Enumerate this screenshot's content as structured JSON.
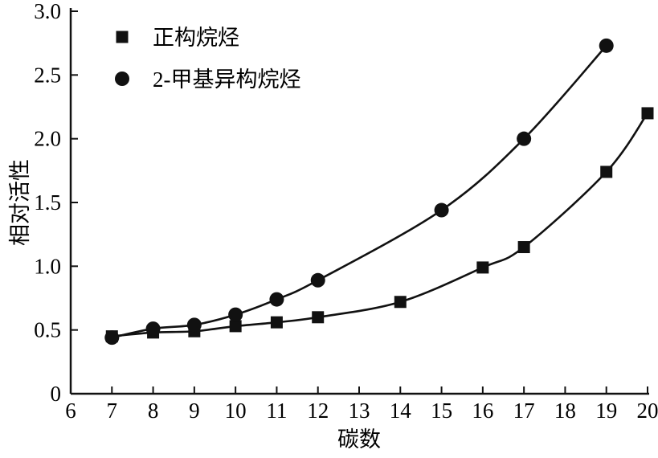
{
  "chart_data": {
    "type": "line",
    "title": "",
    "xlabel": "碳数",
    "ylabel": "相对活性",
    "xlim": [
      6,
      20
    ],
    "ylim": [
      0,
      3.0
    ],
    "xticks": [
      6,
      7,
      8,
      9,
      10,
      11,
      12,
      13,
      14,
      15,
      16,
      17,
      18,
      19,
      20
    ],
    "xtick_labels": [
      "6",
      "7",
      "8",
      "9",
      "10",
      "11",
      "12",
      "13",
      "14",
      "15",
      "16",
      "17",
      "18",
      "19",
      "20"
    ],
    "yticks": [
      0,
      0.5,
      1.0,
      1.5,
      2.0,
      2.5,
      3.0
    ],
    "ytick_labels": [
      "0",
      "0.5",
      "1.0",
      "1.5",
      "2.0",
      "2.5",
      "3.0"
    ],
    "grid": false,
    "legend_position": "top-left",
    "line_color": "#111111",
    "series": [
      {
        "name": "正构烷烃",
        "marker": "square",
        "x": [
          7,
          8,
          9,
          10,
          11,
          12,
          14,
          16,
          17,
          19,
          20
        ],
        "y": [
          0.45,
          0.48,
          0.49,
          0.53,
          0.56,
          0.6,
          0.72,
          0.99,
          1.15,
          1.74,
          2.2
        ]
      },
      {
        "name": "2-甲基异构烷烃",
        "marker": "circle",
        "x": [
          7,
          8,
          9,
          10,
          11,
          12,
          15,
          17,
          19
        ],
        "y": [
          0.44,
          0.51,
          0.54,
          0.62,
          0.74,
          0.89,
          1.44,
          2.0,
          2.73
        ]
      }
    ]
  }
}
